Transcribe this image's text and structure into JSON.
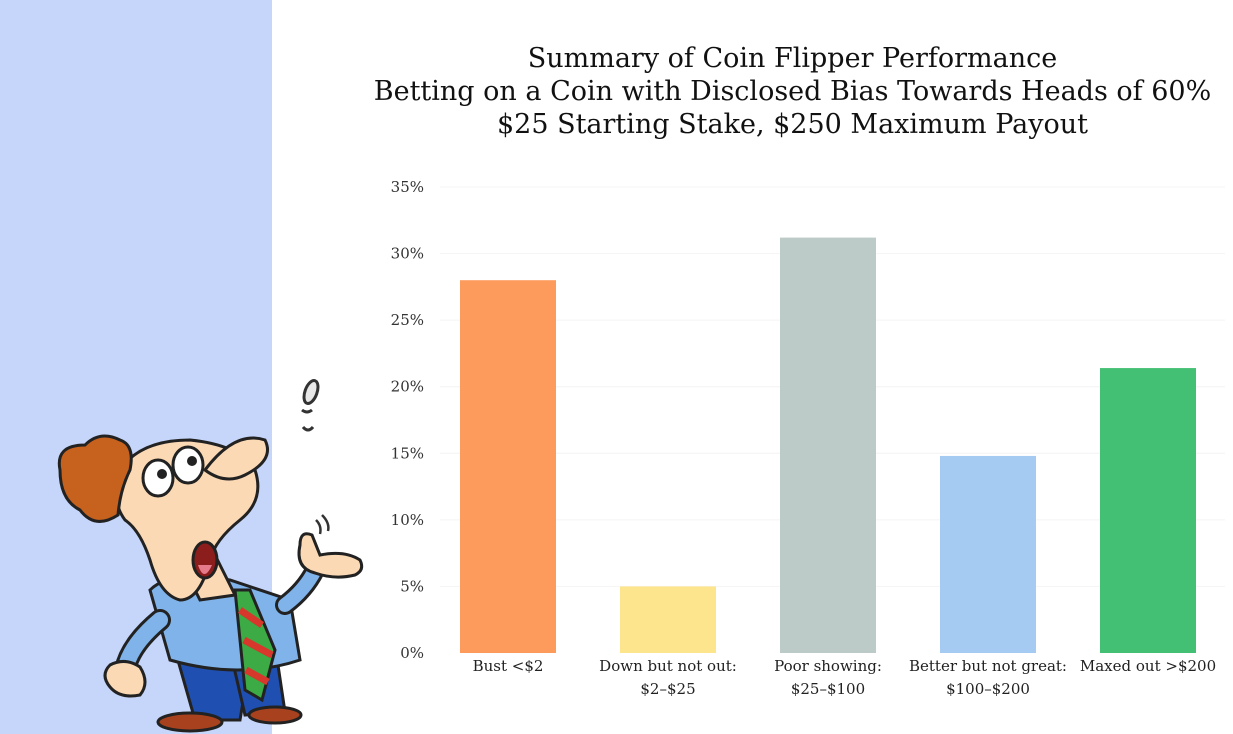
{
  "chart_data": {
    "type": "bar",
    "title": "Summary of Coin Flipper Performance",
    "subtitle_lines": [
      "Betting on a Coin with Disclosed Bias Towards Heads of 60%",
      "$25 Starting Stake, $250 Maximum Payout"
    ],
    "xlabel": "",
    "ylabel": "",
    "ylim": [
      0,
      35
    ],
    "yticks": [
      "0%",
      "5%",
      "10%",
      "15%",
      "20%",
      "25%",
      "30%",
      "35%"
    ],
    "ytick_values": [
      0,
      5,
      10,
      15,
      20,
      25,
      30,
      35
    ],
    "grid": false,
    "legend": "none",
    "categories": [
      [
        "Bust <$2"
      ],
      [
        "Down but not out:",
        "$2–$25"
      ],
      [
        "Poor showing:",
        "$25–$100"
      ],
      [
        "Better but not great:",
        "$100–$200"
      ],
      [
        "Maxed out >$200"
      ]
    ],
    "values": [
      28,
      5,
      31.2,
      14.8,
      21.4
    ],
    "colors": [
      "#fc9b5c",
      "#fde58e",
      "#bdcbc8",
      "#a6cbf2",
      "#43c073"
    ]
  }
}
